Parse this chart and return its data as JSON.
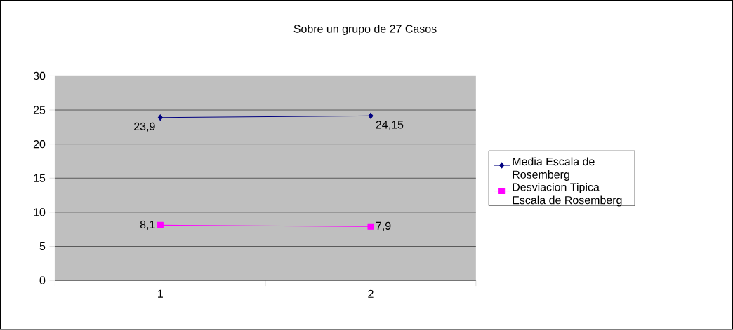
{
  "chart_data": {
    "type": "line",
    "title": "Sobre un grupo de 27 Casos",
    "categories": [
      "1",
      "2"
    ],
    "series": [
      {
        "name": "Media Escala de Rosemberg",
        "color": "#000080",
        "marker": "diamond",
        "values": [
          23.9,
          24.15
        ],
        "value_labels": [
          "23,9",
          "24,15"
        ]
      },
      {
        "name": "Desviacion Tipica Escala de Rosemberg",
        "color": "#ff00ff",
        "marker": "square",
        "values": [
          8.1,
          7.9
        ],
        "value_labels": [
          "8,1",
          "7,9"
        ]
      }
    ],
    "ylim": [
      0,
      30
    ],
    "yticks": [
      0,
      5,
      10,
      15,
      20,
      25,
      30
    ],
    "grid": "y",
    "legend": "right"
  }
}
